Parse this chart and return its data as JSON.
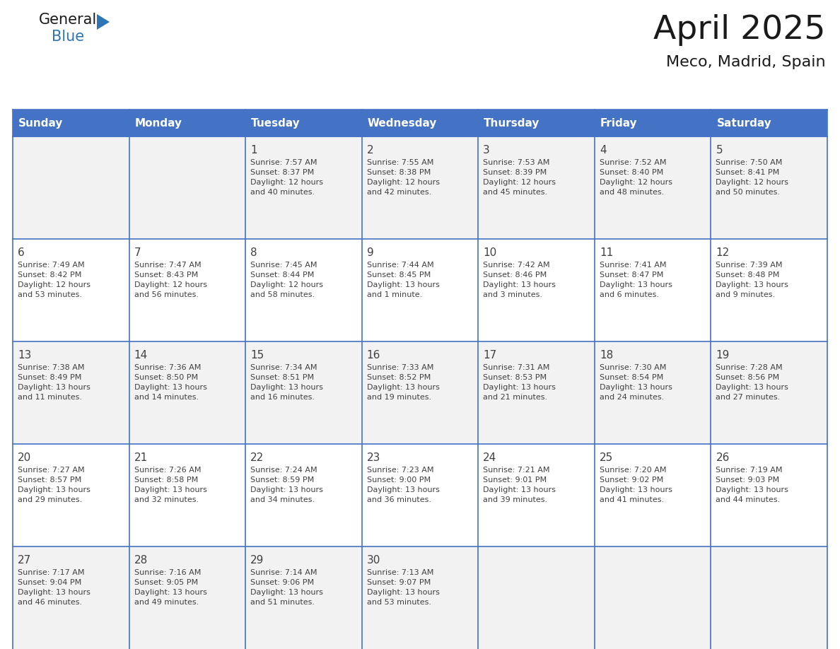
{
  "title": "April 2025",
  "subtitle": "Meco, Madrid, Spain",
  "days_of_week": [
    "Sunday",
    "Monday",
    "Tuesday",
    "Wednesday",
    "Thursday",
    "Friday",
    "Saturday"
  ],
  "header_bg": "#4472C4",
  "header_text": "#FFFFFF",
  "row_bg": [
    "#F2F2F2",
    "#FFFFFF"
  ],
  "grid_line_color": "#4472C4",
  "text_color": "#404040",
  "title_color": "#1a1a1a",
  "logo_general_color": "#1a1a1a",
  "logo_blue_color": "#2E75B6",
  "calendar_data": [
    {
      "day": 1,
      "col": 2,
      "row": 0,
      "sunrise": "7:57 AM",
      "sunset": "8:37 PM",
      "daylight": "12 hours\nand 40 minutes."
    },
    {
      "day": 2,
      "col": 3,
      "row": 0,
      "sunrise": "7:55 AM",
      "sunset": "8:38 PM",
      "daylight": "12 hours\nand 42 minutes."
    },
    {
      "day": 3,
      "col": 4,
      "row": 0,
      "sunrise": "7:53 AM",
      "sunset": "8:39 PM",
      "daylight": "12 hours\nand 45 minutes."
    },
    {
      "day": 4,
      "col": 5,
      "row": 0,
      "sunrise": "7:52 AM",
      "sunset": "8:40 PM",
      "daylight": "12 hours\nand 48 minutes."
    },
    {
      "day": 5,
      "col": 6,
      "row": 0,
      "sunrise": "7:50 AM",
      "sunset": "8:41 PM",
      "daylight": "12 hours\nand 50 minutes."
    },
    {
      "day": 6,
      "col": 0,
      "row": 1,
      "sunrise": "7:49 AM",
      "sunset": "8:42 PM",
      "daylight": "12 hours\nand 53 minutes."
    },
    {
      "day": 7,
      "col": 1,
      "row": 1,
      "sunrise": "7:47 AM",
      "sunset": "8:43 PM",
      "daylight": "12 hours\nand 56 minutes."
    },
    {
      "day": 8,
      "col": 2,
      "row": 1,
      "sunrise": "7:45 AM",
      "sunset": "8:44 PM",
      "daylight": "12 hours\nand 58 minutes."
    },
    {
      "day": 9,
      "col": 3,
      "row": 1,
      "sunrise": "7:44 AM",
      "sunset": "8:45 PM",
      "daylight": "13 hours\nand 1 minute."
    },
    {
      "day": 10,
      "col": 4,
      "row": 1,
      "sunrise": "7:42 AM",
      "sunset": "8:46 PM",
      "daylight": "13 hours\nand 3 minutes."
    },
    {
      "day": 11,
      "col": 5,
      "row": 1,
      "sunrise": "7:41 AM",
      "sunset": "8:47 PM",
      "daylight": "13 hours\nand 6 minutes."
    },
    {
      "day": 12,
      "col": 6,
      "row": 1,
      "sunrise": "7:39 AM",
      "sunset": "8:48 PM",
      "daylight": "13 hours\nand 9 minutes."
    },
    {
      "day": 13,
      "col": 0,
      "row": 2,
      "sunrise": "7:38 AM",
      "sunset": "8:49 PM",
      "daylight": "13 hours\nand 11 minutes."
    },
    {
      "day": 14,
      "col": 1,
      "row": 2,
      "sunrise": "7:36 AM",
      "sunset": "8:50 PM",
      "daylight": "13 hours\nand 14 minutes."
    },
    {
      "day": 15,
      "col": 2,
      "row": 2,
      "sunrise": "7:34 AM",
      "sunset": "8:51 PM",
      "daylight": "13 hours\nand 16 minutes."
    },
    {
      "day": 16,
      "col": 3,
      "row": 2,
      "sunrise": "7:33 AM",
      "sunset": "8:52 PM",
      "daylight": "13 hours\nand 19 minutes."
    },
    {
      "day": 17,
      "col": 4,
      "row": 2,
      "sunrise": "7:31 AM",
      "sunset": "8:53 PM",
      "daylight": "13 hours\nand 21 minutes."
    },
    {
      "day": 18,
      "col": 5,
      "row": 2,
      "sunrise": "7:30 AM",
      "sunset": "8:54 PM",
      "daylight": "13 hours\nand 24 minutes."
    },
    {
      "day": 19,
      "col": 6,
      "row": 2,
      "sunrise": "7:28 AM",
      "sunset": "8:56 PM",
      "daylight": "13 hours\nand 27 minutes."
    },
    {
      "day": 20,
      "col": 0,
      "row": 3,
      "sunrise": "7:27 AM",
      "sunset": "8:57 PM",
      "daylight": "13 hours\nand 29 minutes."
    },
    {
      "day": 21,
      "col": 1,
      "row": 3,
      "sunrise": "7:26 AM",
      "sunset": "8:58 PM",
      "daylight": "13 hours\nand 32 minutes."
    },
    {
      "day": 22,
      "col": 2,
      "row": 3,
      "sunrise": "7:24 AM",
      "sunset": "8:59 PM",
      "daylight": "13 hours\nand 34 minutes."
    },
    {
      "day": 23,
      "col": 3,
      "row": 3,
      "sunrise": "7:23 AM",
      "sunset": "9:00 PM",
      "daylight": "13 hours\nand 36 minutes."
    },
    {
      "day": 24,
      "col": 4,
      "row": 3,
      "sunrise": "7:21 AM",
      "sunset": "9:01 PM",
      "daylight": "13 hours\nand 39 minutes."
    },
    {
      "day": 25,
      "col": 5,
      "row": 3,
      "sunrise": "7:20 AM",
      "sunset": "9:02 PM",
      "daylight": "13 hours\nand 41 minutes."
    },
    {
      "day": 26,
      "col": 6,
      "row": 3,
      "sunrise": "7:19 AM",
      "sunset": "9:03 PM",
      "daylight": "13 hours\nand 44 minutes."
    },
    {
      "day": 27,
      "col": 0,
      "row": 4,
      "sunrise": "7:17 AM",
      "sunset": "9:04 PM",
      "daylight": "13 hours\nand 46 minutes."
    },
    {
      "day": 28,
      "col": 1,
      "row": 4,
      "sunrise": "7:16 AM",
      "sunset": "9:05 PM",
      "daylight": "13 hours\nand 49 minutes."
    },
    {
      "day": 29,
      "col": 2,
      "row": 4,
      "sunrise": "7:14 AM",
      "sunset": "9:06 PM",
      "daylight": "13 hours\nand 51 minutes."
    },
    {
      "day": 30,
      "col": 3,
      "row": 4,
      "sunrise": "7:13 AM",
      "sunset": "9:07 PM",
      "daylight": "13 hours\nand 53 minutes."
    }
  ]
}
